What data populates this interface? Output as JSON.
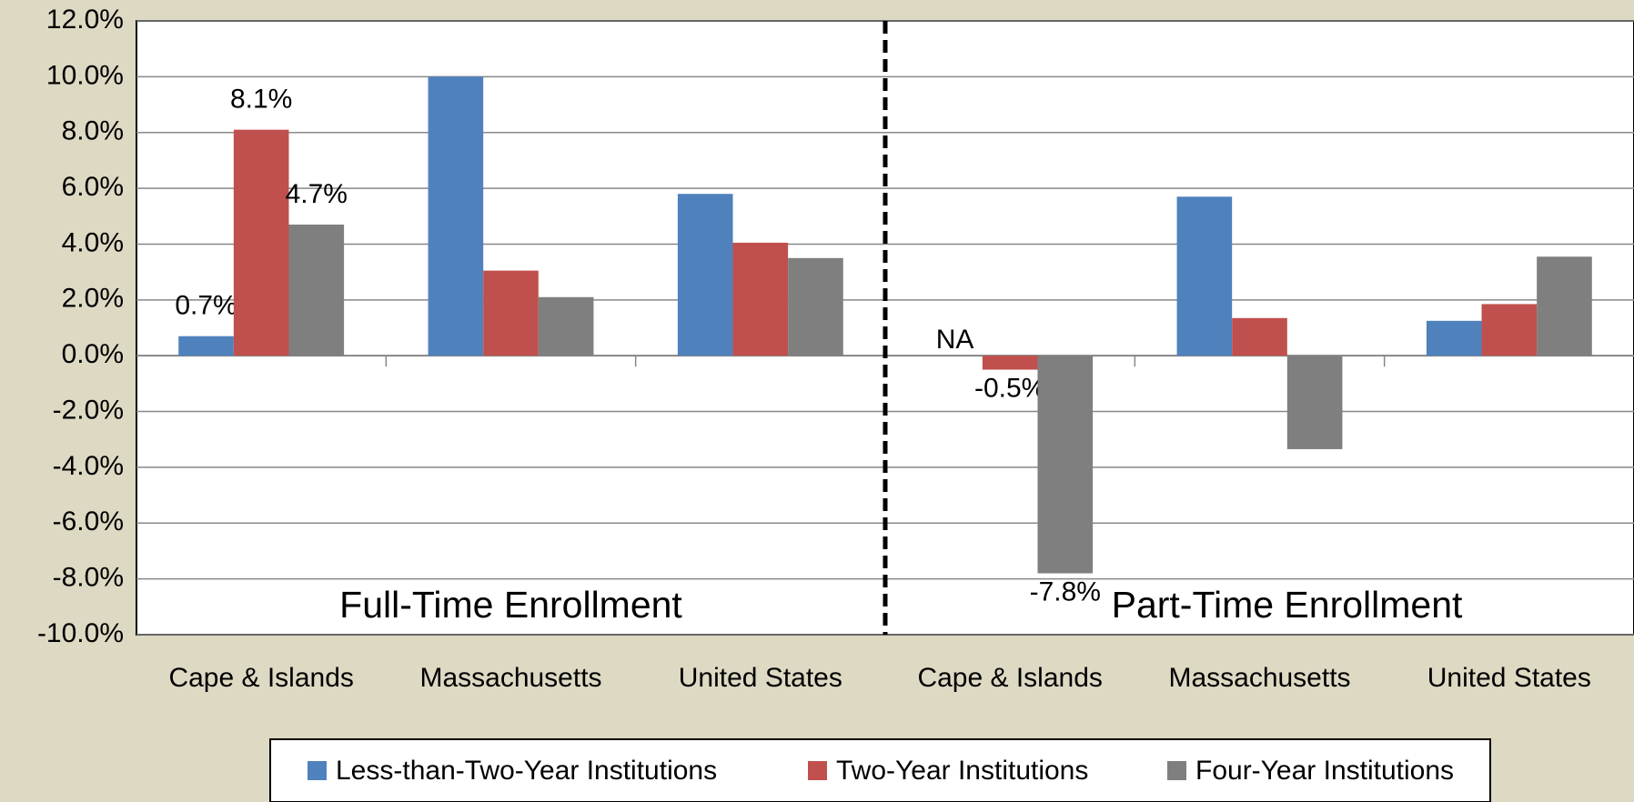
{
  "chart_data": {
    "type": "bar",
    "categories": [
      "Cape & Islands",
      "Massachusetts",
      "United States",
      "Cape & Islands",
      "Massachusetts",
      "United States"
    ],
    "series": [
      {
        "name": "Less-than-Two-Year Institutions",
        "color": "#4f81bd",
        "values": [
          0.7,
          10.0,
          5.8,
          null,
          5.7,
          1.25
        ],
        "value_labels": [
          "0.7%",
          null,
          null,
          "NA",
          null,
          null
        ]
      },
      {
        "name": "Two-Year Institutions",
        "color": "#c0504d",
        "values": [
          8.1,
          3.05,
          4.05,
          -0.5,
          1.35,
          1.85
        ],
        "value_labels": [
          "8.1%",
          null,
          null,
          "-0.5%",
          null,
          null
        ]
      },
      {
        "name": "Four-Year Institutions",
        "color": "#7f7f7f",
        "values": [
          4.7,
          2.1,
          3.5,
          -7.8,
          -3.35,
          3.55
        ],
        "value_labels": [
          "4.7%",
          null,
          null,
          "-7.8%",
          null,
          null
        ]
      }
    ],
    "annotations": [
      "Full-Time Enrollment",
      "Part-Time Enrollment"
    ],
    "ylim": [
      -10,
      12
    ],
    "yticks": [
      {
        "value": -10,
        "label": "-10.0%"
      },
      {
        "value": -8,
        "label": "-8.0%"
      },
      {
        "value": -6,
        "label": "-6.0%"
      },
      {
        "value": -4,
        "label": "-4.0%"
      },
      {
        "value": -2,
        "label": "-2.0%"
      },
      {
        "value": 0,
        "label": "0.0%"
      },
      {
        "value": 2,
        "label": "2.0%"
      },
      {
        "value": 4,
        "label": "4.0%"
      },
      {
        "value": 6,
        "label": "6.0%"
      },
      {
        "value": 8,
        "label": "8.0%"
      },
      {
        "value": 10,
        "label": "10.0%"
      },
      {
        "value": 12,
        "label": "12.0%"
      }
    ],
    "grid": true,
    "legend": "bottom"
  }
}
